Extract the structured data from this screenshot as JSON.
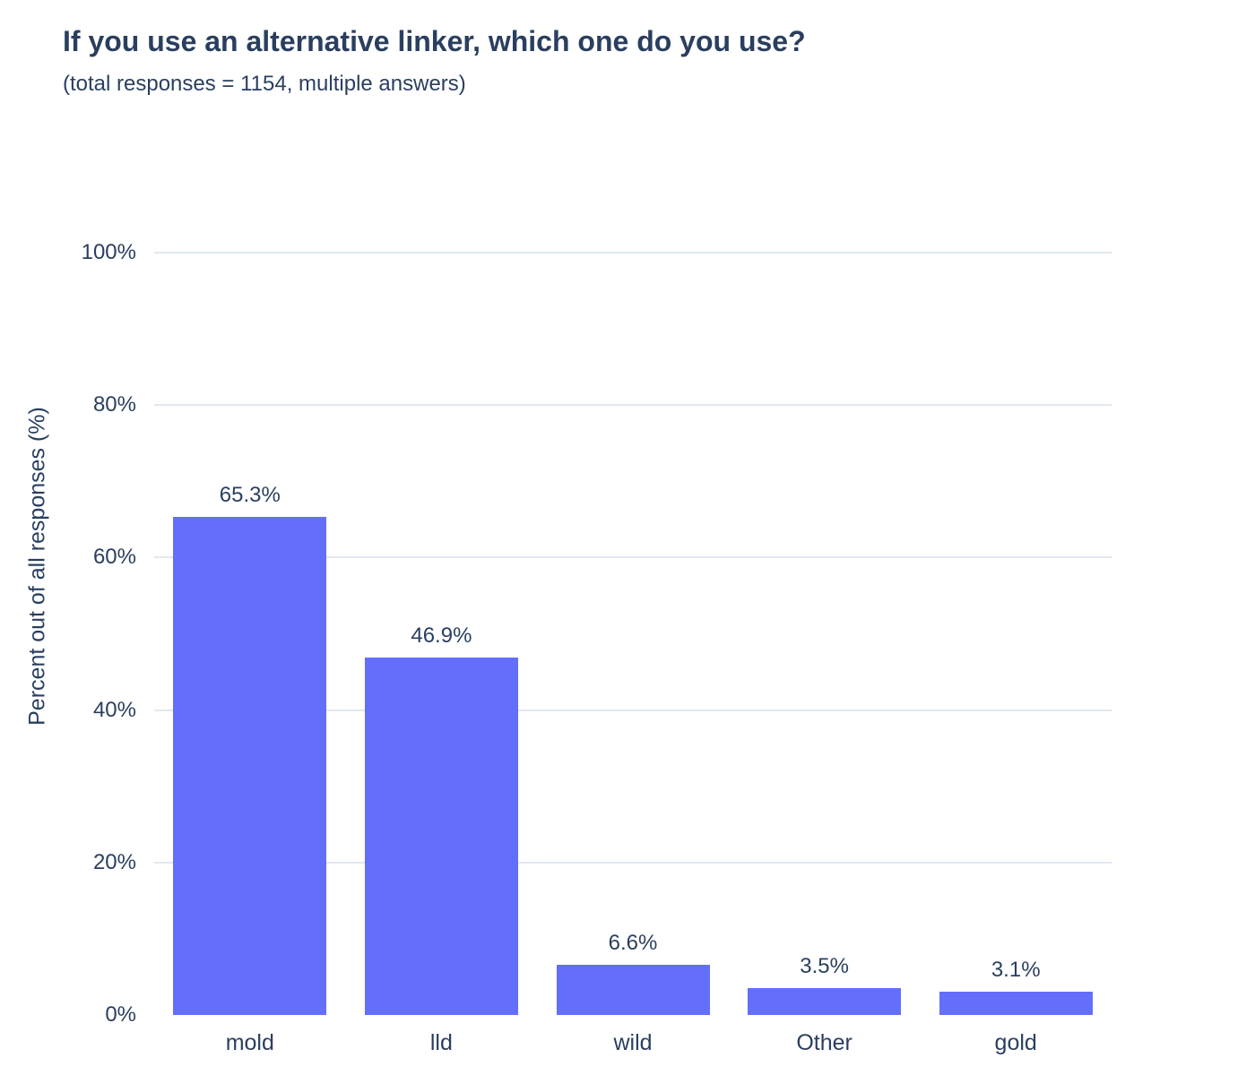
{
  "header": {
    "title": "If you use an alternative linker, which one do you use?",
    "subtitle": "(total responses = 1154, multiple answers)"
  },
  "chart_data": {
    "type": "bar",
    "title": "If you use an alternative linker, which one do you use?",
    "subtitle": "(total responses = 1154, multiple answers)",
    "categories": [
      "mold",
      "lld",
      "wild",
      "Other",
      "gold"
    ],
    "values": [
      65.3,
      46.9,
      6.6,
      3.5,
      3.1
    ],
    "value_labels": [
      "65.3%",
      "46.9%",
      "6.6%",
      "3.5%",
      "3.1%"
    ],
    "xlabel": "",
    "ylabel": "Percent out of all responses (%)",
    "ylim": [
      0,
      100
    ],
    "yticks": [
      0,
      20,
      40,
      60,
      80,
      100
    ],
    "ytick_labels": [
      "0%",
      "20%",
      "40%",
      "60%",
      "80%",
      "100%"
    ],
    "grid": true,
    "legend": false,
    "colors": {
      "bar": "#636efa",
      "grid": "#e2e8f1",
      "text": "#2a3f5f",
      "background": "#ffffff"
    }
  }
}
